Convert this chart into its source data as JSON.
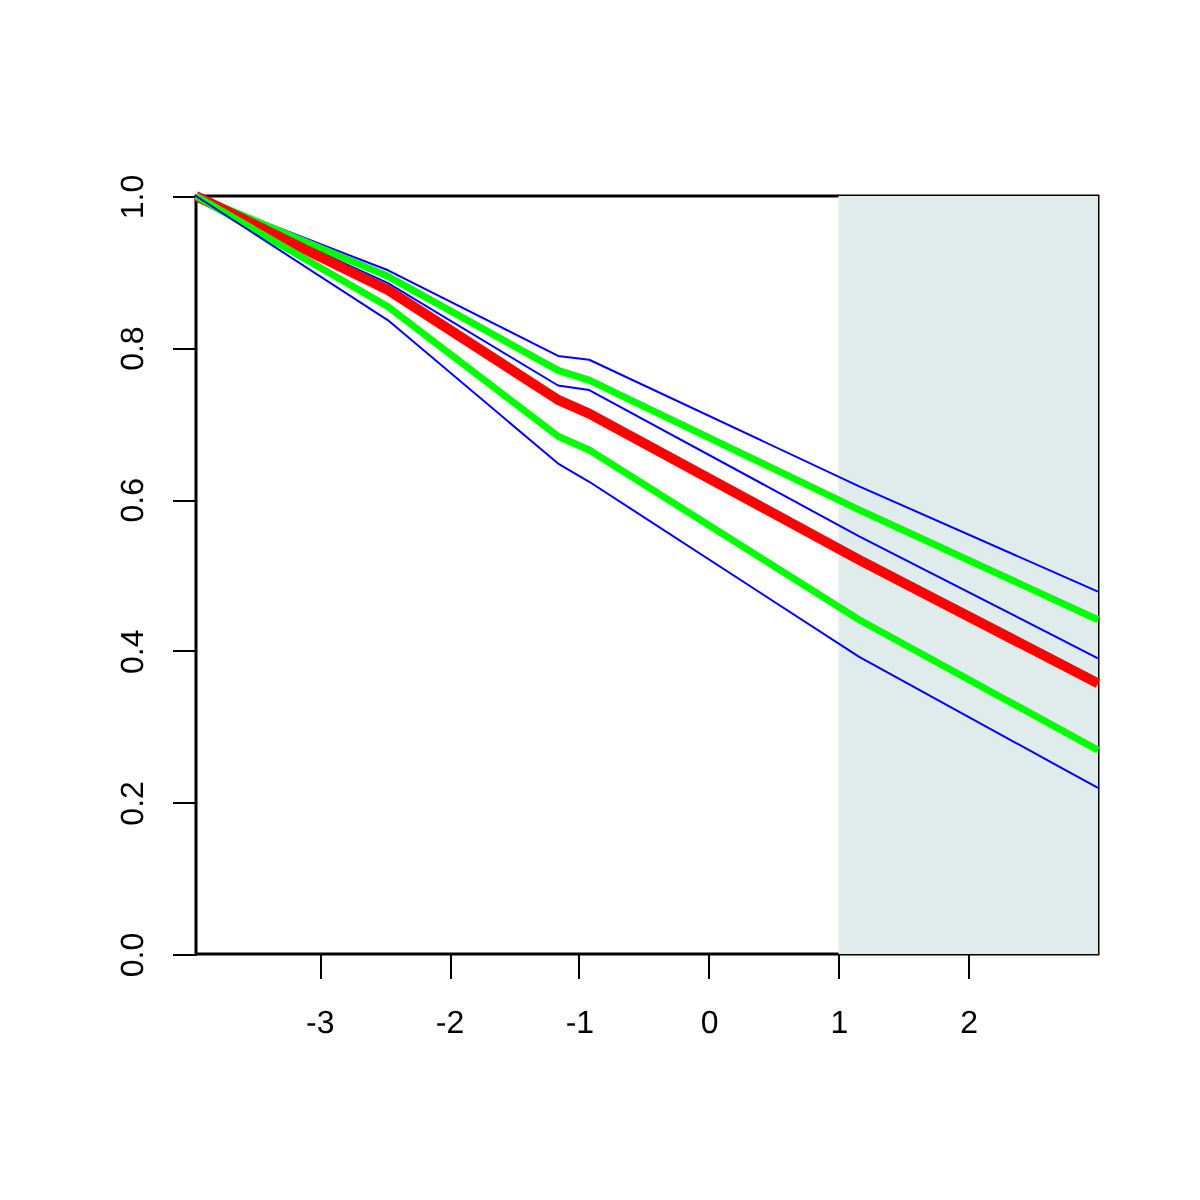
{
  "chart_data": {
    "type": "line",
    "x": [
      -3.95,
      -2.47,
      -1.16,
      -0.92,
      1.16,
      3.0
    ],
    "series": [
      {
        "color": "#0000ff",
        "values": [
          1.0,
          0.902,
          0.789,
          0.784,
          0.617,
          0.478
        ]
      },
      {
        "color": "#00ff00",
        "values": [
          1.0,
          0.894,
          0.77,
          0.757,
          0.586,
          0.441
        ]
      },
      {
        "color": "#0000ff",
        "values": [
          1.0,
          0.885,
          0.75,
          0.744,
          0.551,
          0.39
        ]
      },
      {
        "color": "#ff0000",
        "values": [
          1.0,
          0.876,
          0.731,
          0.713,
          0.52,
          0.357
        ]
      },
      {
        "color": "#00ff00",
        "values": [
          1.0,
          0.854,
          0.683,
          0.665,
          0.441,
          0.269
        ]
      },
      {
        "color": "#0000ff",
        "values": [
          1.0,
          0.836,
          0.647,
          0.623,
          0.392,
          0.219
        ]
      }
    ],
    "xlim": [
      -3.95,
      3.0
    ],
    "ylim": [
      0,
      1
    ],
    "xticks": [
      -3,
      -2,
      -1,
      0,
      1,
      2
    ],
    "yticks": [
      {
        "value": 0,
        "label": "0.0"
      },
      0.2,
      0.4,
      0.6,
      0.8,
      {
        "value": 1.0,
        "label": "1.0"
      }
    ],
    "bands": [
      {
        "axis": "x",
        "from": 1,
        "to": 3.0,
        "color": "#e0ecec"
      }
    ],
    "grid": false,
    "marker": "none",
    "line_style": "solid"
  }
}
